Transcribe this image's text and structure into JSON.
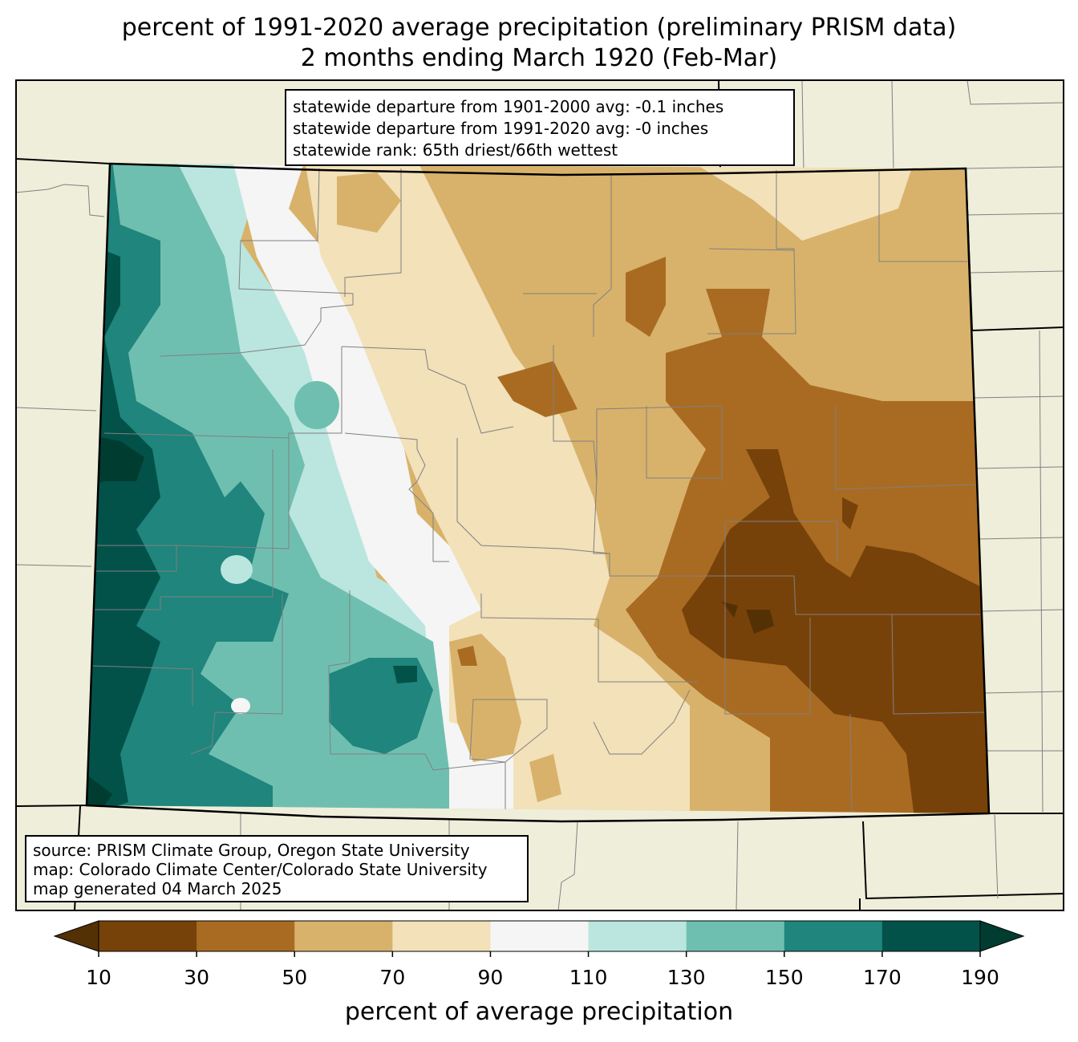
{
  "title": {
    "line1": "percent of 1991-2020 average precipitation (preliminary PRISM data)",
    "line2": "2 months ending March 1920 (Feb-Mar)"
  },
  "stats": {
    "line1": "statewide departure from 1901-2000 avg: -0.1 inches",
    "line2": "statewide departure from 1991-2020 avg: -0 inches",
    "line3": "statewide rank: 65th driest/66th wettest"
  },
  "source": {
    "line1": "source: PRISM Climate Group, Oregon State University",
    "line2": "map: Colorado Climate Center/Colorado State University",
    "line3": "map generated 04 March 2025"
  },
  "colorbar": {
    "label": "percent of average precipitation",
    "ticks": [
      "10",
      "30",
      "50",
      "70",
      "90",
      "110",
      "130",
      "150",
      "170",
      "190"
    ],
    "colors": [
      "#543005",
      "#774209",
      "#a96b22",
      "#d8b26b",
      "#f2e1b9",
      "#f4f5f4",
      "#bae6df",
      "#6fbfb0",
      "#20857c",
      "#02524a",
      "#003c30"
    ]
  },
  "map_colors": {
    "land": "#efeedb",
    "state_border": "#000000",
    "county_lines": "#808080"
  }
}
